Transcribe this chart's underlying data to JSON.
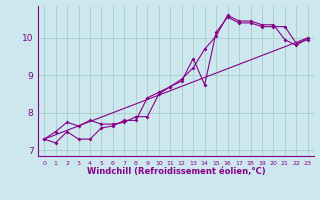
{
  "xlabel": "Windchill (Refroidissement éolien,°C)",
  "bg_color": "#cce8ee",
  "line_color": "#880088",
  "grid_color": "#aacccc",
  "series1_x": [
    0,
    1,
    2,
    3,
    4,
    5,
    6,
    7,
    8,
    9,
    10,
    11,
    12,
    13,
    14,
    15,
    16,
    17,
    18,
    19,
    20,
    21,
    22,
    23
  ],
  "series1_y": [
    7.3,
    7.2,
    7.5,
    7.3,
    7.3,
    7.6,
    7.65,
    7.8,
    7.8,
    8.4,
    8.55,
    8.7,
    8.85,
    9.45,
    8.75,
    10.15,
    10.55,
    10.4,
    10.4,
    10.3,
    10.3,
    10.3,
    9.85,
    9.95
  ],
  "series2_x": [
    0,
    1,
    2,
    3,
    4,
    5,
    6,
    7,
    8,
    9,
    10,
    11,
    12,
    13,
    14,
    15,
    16,
    17,
    18,
    19,
    20,
    21,
    22,
    23
  ],
  "series2_y": [
    7.3,
    7.5,
    7.75,
    7.65,
    7.8,
    7.7,
    7.7,
    7.75,
    7.9,
    7.9,
    8.5,
    8.7,
    8.9,
    9.2,
    9.7,
    10.05,
    10.6,
    10.45,
    10.45,
    10.35,
    10.35,
    9.95,
    9.8,
    10.0
  ],
  "series3_x": [
    0,
    23
  ],
  "series3_y": [
    7.3,
    10.0
  ],
  "xlim": [
    -0.5,
    23.5
  ],
  "ylim": [
    6.85,
    10.85
  ],
  "yticks": [
    7,
    8,
    9,
    10
  ],
  "xticks": [
    0,
    1,
    2,
    3,
    4,
    5,
    6,
    7,
    8,
    9,
    10,
    11,
    12,
    13,
    14,
    15,
    16,
    17,
    18,
    19,
    20,
    21,
    22,
    23
  ],
  "marker": "D",
  "markersize": 2.0,
  "linewidth": 0.8,
  "xlabel_fontsize": 6,
  "ytick_fontsize": 6.5,
  "xtick_fontsize": 4.5
}
